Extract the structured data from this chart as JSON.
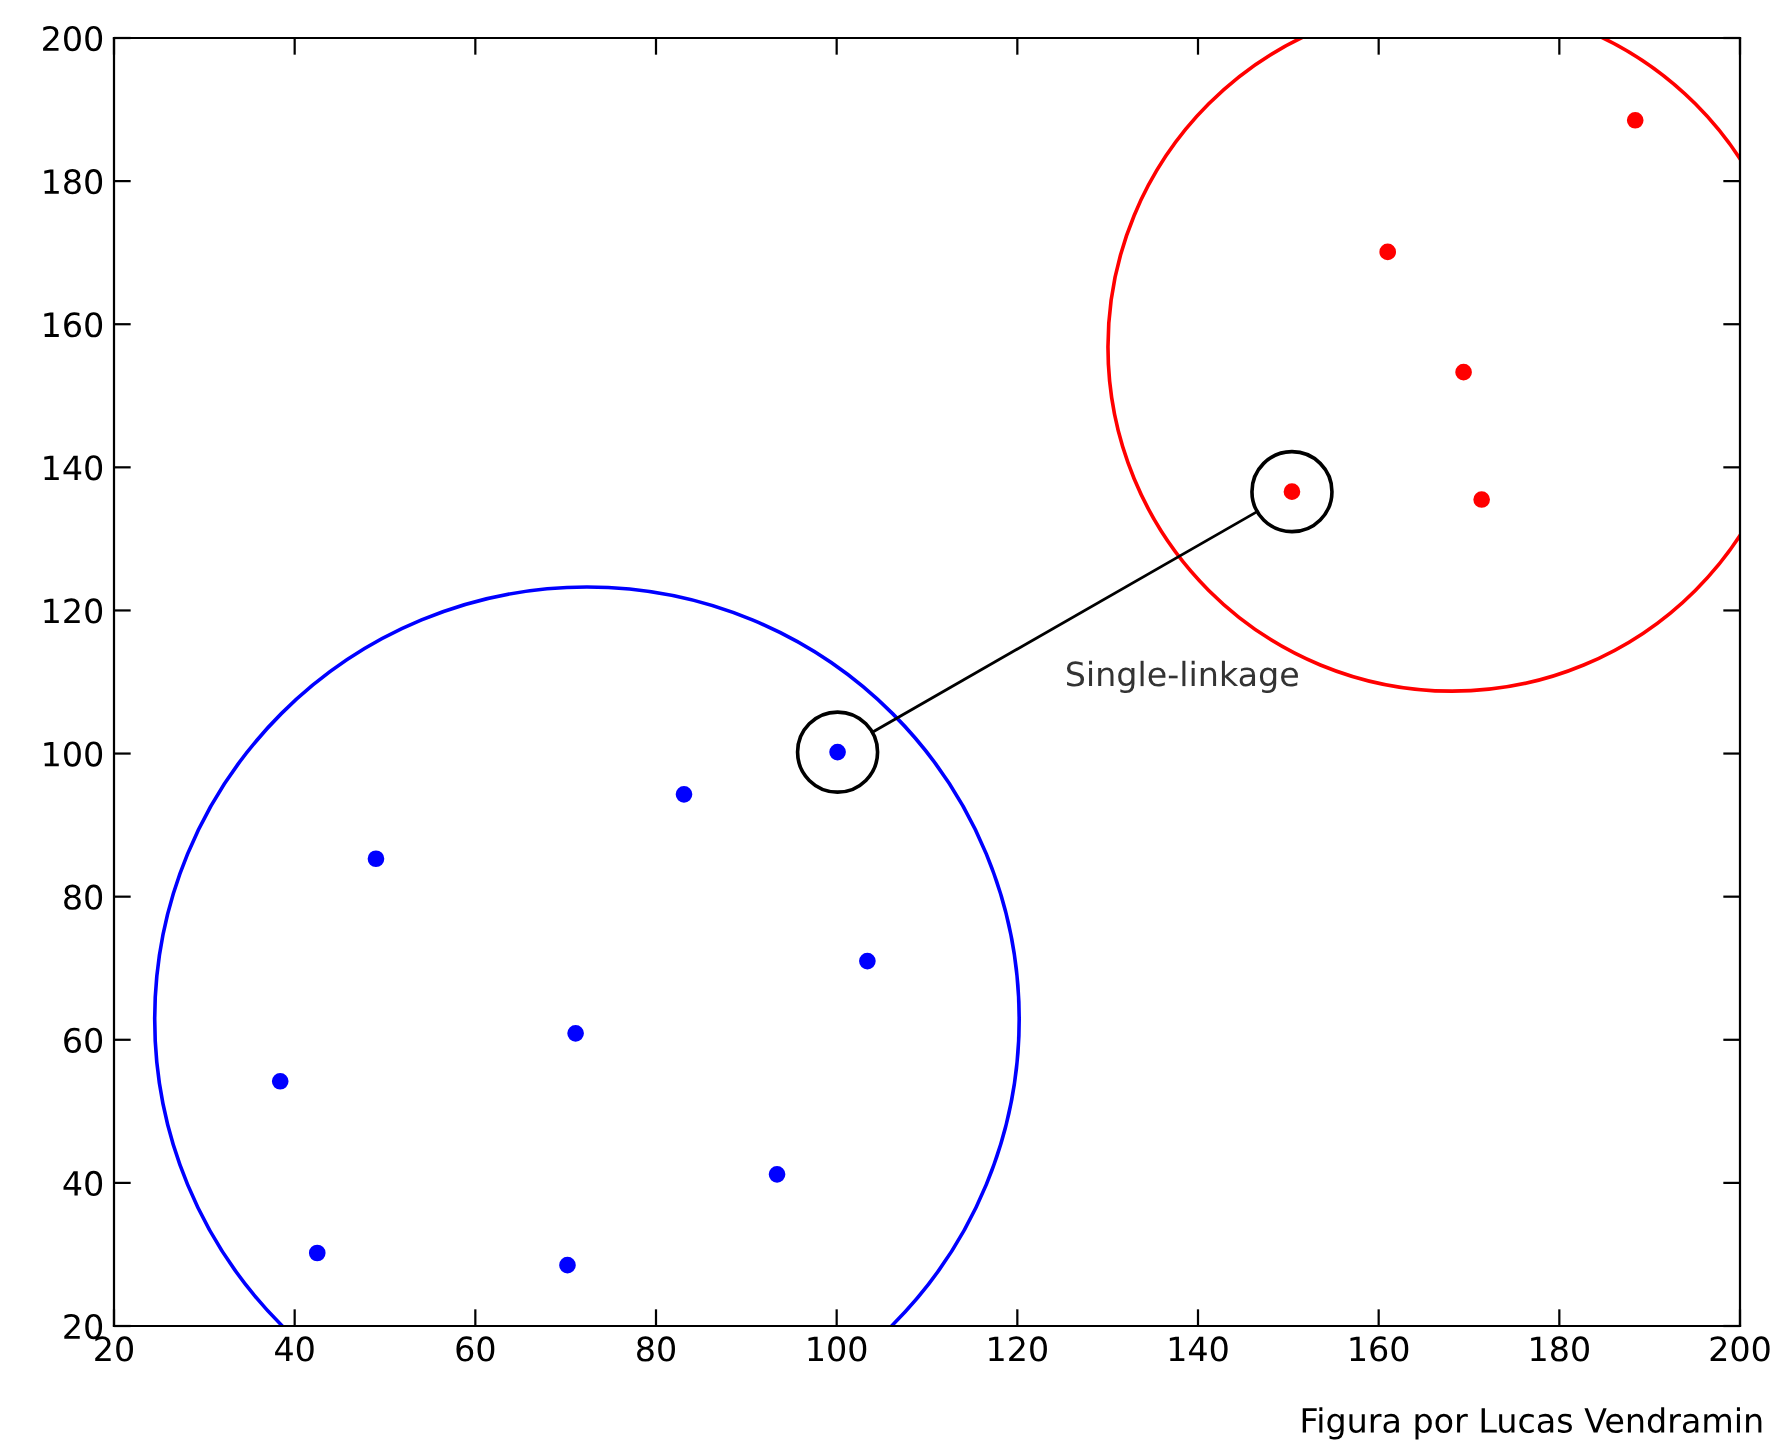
{
  "chart_data": {
    "type": "scatter",
    "xlim": [
      20,
      200
    ],
    "ylim": [
      20,
      200
    ],
    "xticks": [
      20,
      40,
      60,
      80,
      100,
      120,
      140,
      160,
      180,
      200
    ],
    "yticks": [
      20,
      40,
      60,
      80,
      100,
      120,
      140,
      160,
      180,
      200
    ],
    "grid": false,
    "marker": "circle",
    "series": [
      {
        "color": "#0000ff",
        "x": [
          38.4,
          42.5,
          49.0,
          70.2,
          71.1,
          83.1,
          93.4,
          100.1,
          103.4
        ],
        "values": [
          54.2,
          30.2,
          85.3,
          28.5,
          60.9,
          94.3,
          41.2,
          100.2,
          71.0
        ]
      },
      {
        "color": "#ff0000",
        "x": [
          150.4,
          161.0,
          169.4,
          171.4,
          188.4
        ],
        "values": [
          136.6,
          170.1,
          153.3,
          135.5,
          188.5
        ]
      }
    ],
    "annotations": [
      "Single-linkage",
      "Figura por Lucas Vendramin"
    ]
  }
}
